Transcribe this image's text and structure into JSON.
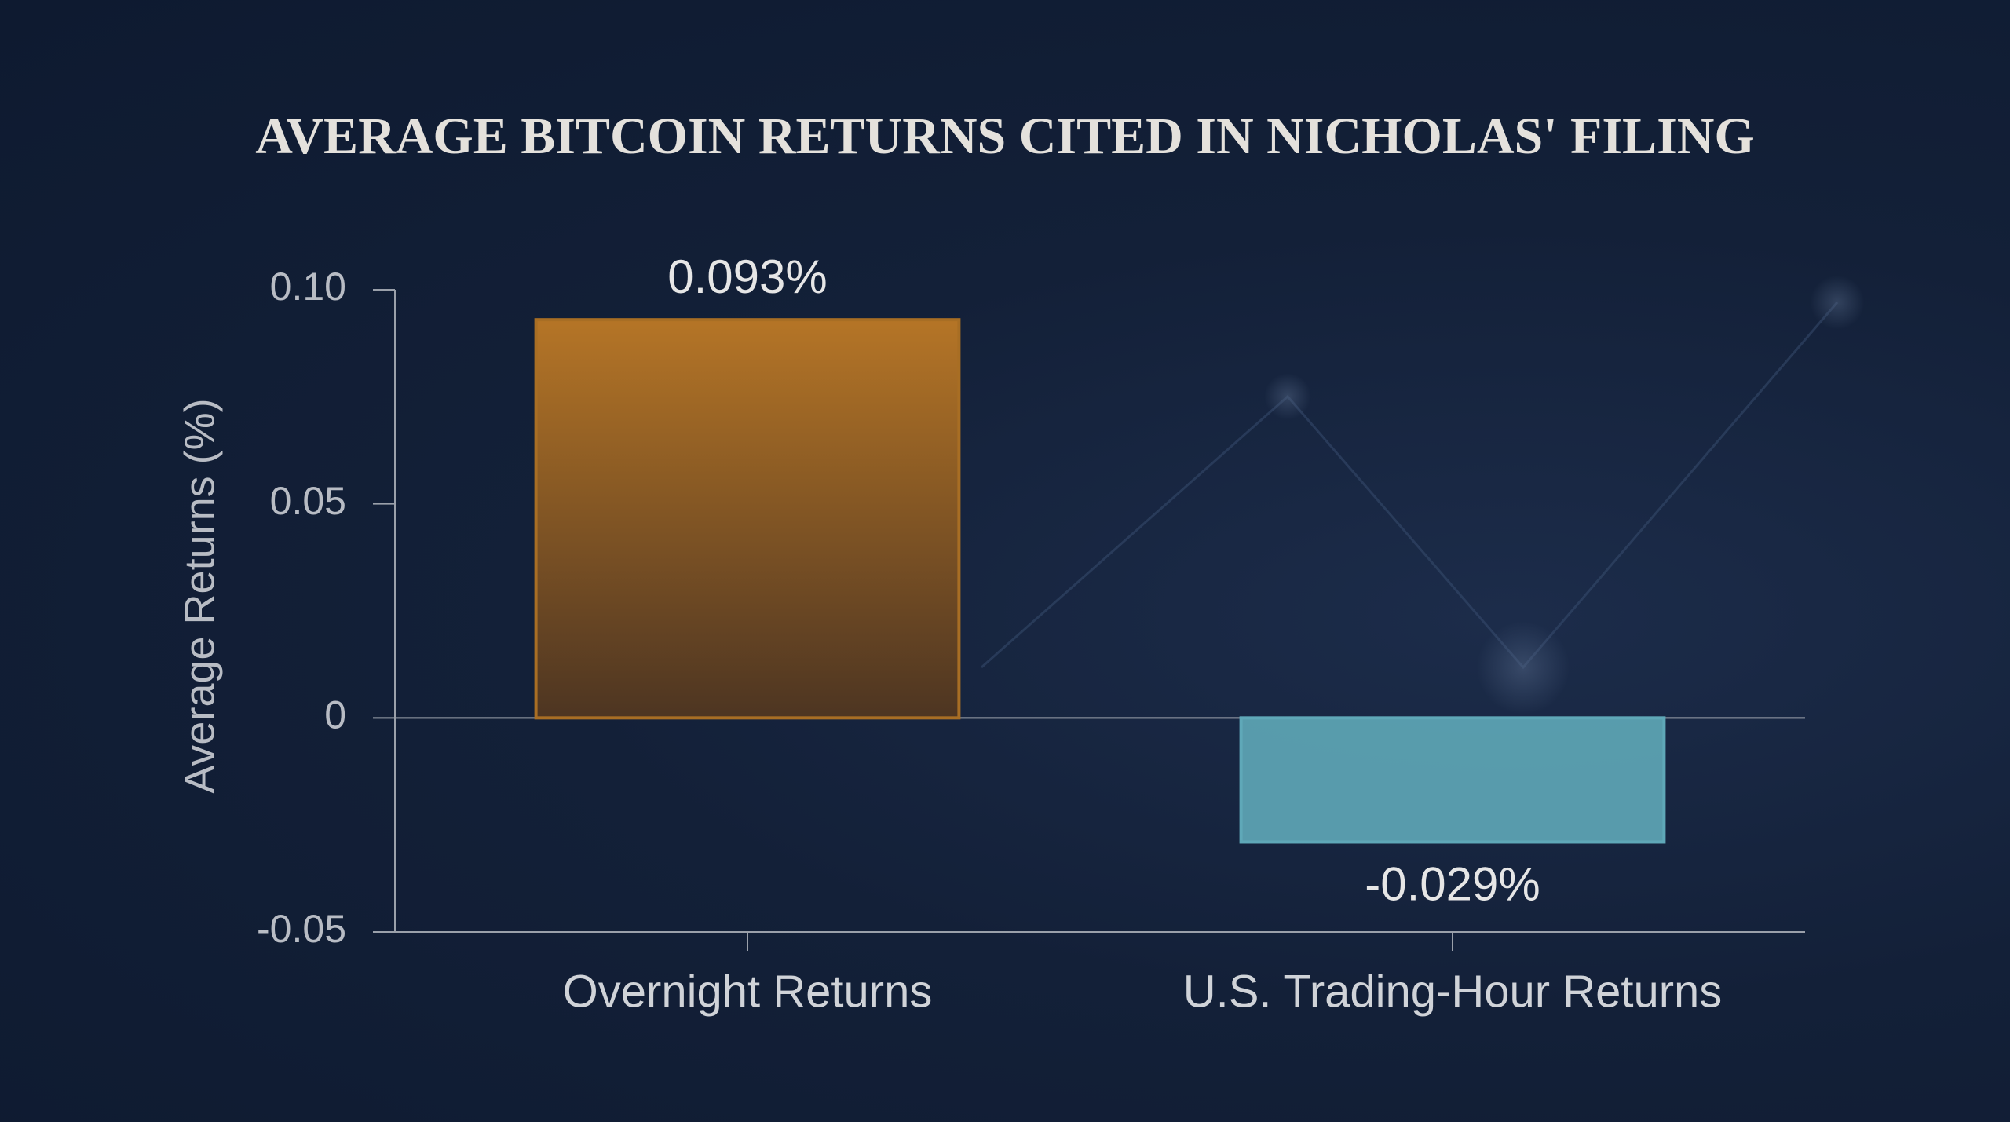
{
  "chart_data": {
    "type": "bar",
    "title": "AVERAGE BITCOIN RETURNS CITED IN NICHOLAS' FILING",
    "y_label": "Average Returns (%)",
    "categories": [
      "Overnight Returns",
      "U.S. Trading-Hour Returns"
    ],
    "values": [
      0.093,
      -0.029
    ],
    "value_labels": [
      "0.093%",
      "-0.029%"
    ],
    "colors": [
      "#a86e24",
      "#5fa8b8"
    ],
    "ylim": [
      -0.05,
      0.1
    ],
    "yticks": [
      -0.05,
      0,
      0.05,
      {
        "value": 0.1,
        "label": "0.10"
      }
    ],
    "grid": false
  }
}
